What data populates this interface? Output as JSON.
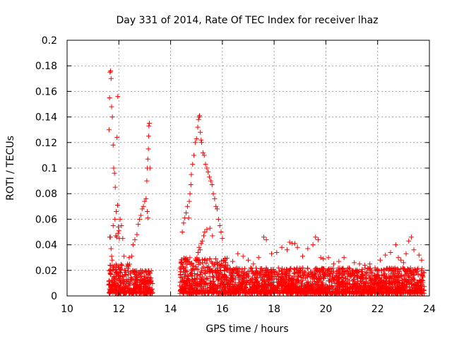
{
  "chart_data": {
    "type": "scatter",
    "title": "Day 331 of 2014, Rate Of TEC Index for receiver lhaz",
    "xlabel": "GPS time / hours",
    "ylabel": "ROTI / TECUs",
    "xlim": [
      10,
      24
    ],
    "ylim": [
      0,
      0.2
    ],
    "xticks": [
      10,
      12,
      14,
      16,
      18,
      20,
      22,
      24
    ],
    "yticks": [
      0,
      0.02,
      0.04,
      0.06,
      0.08,
      0.1,
      0.12,
      0.14,
      0.16,
      0.18,
      0.2
    ],
    "xtick_labels": [
      "10",
      "12",
      "14",
      "16",
      "18",
      "20",
      "22",
      "24"
    ],
    "ytick_labels": [
      "0",
      "0.02",
      "0.04",
      "0.06",
      "0.08",
      "0.1",
      "0.12",
      "0.14",
      "0.16",
      "0.18",
      "0.2"
    ],
    "grid": true,
    "marker": "+",
    "color": "#ff0000",
    "series": [
      {
        "name": "ROTI",
        "x": [
          11.62,
          11.64,
          11.66,
          11.68,
          11.7,
          11.72,
          11.75,
          11.78,
          11.8,
          11.83,
          11.86,
          11.9,
          11.95,
          11.98,
          12.0,
          12.02,
          11.93,
          11.96,
          11.65,
          11.67,
          11.7,
          11.72,
          11.74,
          11.78,
          11.85,
          11.88,
          11.92,
          11.97,
          12.05,
          12.1,
          12.15,
          12.2,
          12.4,
          12.5,
          12.55,
          12.62,
          12.7,
          12.75,
          12.8,
          12.85,
          12.9,
          12.95,
          13.0,
          13.05,
          13.08,
          13.1,
          13.12,
          13.14,
          13.15,
          13.16,
          13.18,
          13.2,
          13.1,
          13.12,
          14.45,
          14.5,
          14.55,
          14.6,
          14.65,
          14.7,
          14.72,
          14.75,
          14.78,
          14.8,
          14.85,
          14.9,
          14.95,
          15.0,
          15.05,
          15.08,
          15.1,
          15.12,
          15.15,
          15.18,
          15.2,
          15.25,
          15.3,
          15.35,
          15.4,
          15.45,
          15.5,
          15.55,
          15.6,
          15.65,
          15.7,
          15.75,
          15.8,
          15.85,
          15.9,
          15.95,
          16.0,
          15.02,
          15.06,
          15.1,
          15.14,
          15.18,
          15.22,
          15.28,
          15.32,
          15.4,
          15.52,
          15.62,
          16.2,
          16.4,
          16.6,
          16.8,
          17.0,
          17.2,
          17.4,
          17.6,
          17.7,
          17.9,
          18.1,
          18.3,
          18.5,
          18.6,
          18.7,
          18.8,
          18.9,
          19.1,
          19.3,
          19.5,
          19.6,
          19.7,
          19.8,
          19.9,
          20.1,
          20.3,
          20.5,
          20.7,
          20.9,
          21.1,
          21.3,
          21.5,
          21.7,
          21.9,
          22.1,
          22.3,
          22.5,
          22.7,
          22.8,
          22.9,
          23.0,
          23.1,
          23.2,
          23.3,
          23.4,
          23.6,
          23.7
        ],
        "y": [
          0.13,
          0.155,
          0.175,
          0.176,
          0.17,
          0.148,
          0.14,
          0.118,
          0.1,
          0.096,
          0.085,
          0.066,
          0.071,
          0.054,
          0.051,
          0.045,
          0.124,
          0.156,
          0.046,
          0.046,
          0.037,
          0.031,
          0.028,
          0.055,
          0.06,
          0.047,
          0.046,
          0.049,
          0.06,
          0.055,
          0.045,
          0.031,
          0.03,
          0.031,
          0.04,
          0.044,
          0.048,
          0.056,
          0.06,
          0.063,
          0.068,
          0.07,
          0.074,
          0.076,
          0.09,
          0.1,
          0.107,
          0.115,
          0.125,
          0.133,
          0.135,
          0.1,
          0.066,
          0.061,
          0.05,
          0.057,
          0.061,
          0.065,
          0.07,
          0.061,
          0.074,
          0.08,
          0.087,
          0.095,
          0.103,
          0.11,
          0.12,
          0.123,
          0.132,
          0.138,
          0.14,
          0.141,
          0.128,
          0.122,
          0.12,
          0.112,
          0.11,
          0.103,
          0.1,
          0.097,
          0.093,
          0.09,
          0.087,
          0.08,
          0.076,
          0.07,
          0.068,
          0.06,
          0.055,
          0.05,
          0.045,
          0.03,
          0.034,
          0.038,
          0.036,
          0.041,
          0.043,
          0.047,
          0.05,
          0.052,
          0.053,
          0.047,
          0.024,
          0.027,
          0.033,
          0.031,
          0.028,
          0.025,
          0.03,
          0.046,
          0.044,
          0.033,
          0.034,
          0.038,
          0.036,
          0.042,
          0.041,
          0.041,
          0.038,
          0.031,
          0.037,
          0.04,
          0.046,
          0.044,
          0.03,
          0.029,
          0.03,
          0.025,
          0.027,
          0.03,
          0.022,
          0.026,
          0.025,
          0.024,
          0.025,
          0.022,
          0.028,
          0.032,
          0.034,
          0.04,
          0.03,
          0.028,
          0.026,
          0.033,
          0.043,
          0.046,
          0.036,
          0.032,
          0.028
        ],
        "dense_band": {
          "description": "dense noise floor of points",
          "segments": [
            {
              "x_start": 11.6,
              "x_end": 12.45,
              "y_min": 0.002,
              "y_max": 0.025
            },
            {
              "x_start": 12.45,
              "x_end": 13.3,
              "y_min": 0.002,
              "y_max": 0.02
            },
            {
              "x_start": 14.35,
              "x_end": 16.2,
              "y_min": 0.002,
              "y_max": 0.03
            },
            {
              "x_start": 16.2,
              "x_end": 23.8,
              "y_min": 0.002,
              "y_max": 0.022
            }
          ]
        }
      }
    ]
  }
}
